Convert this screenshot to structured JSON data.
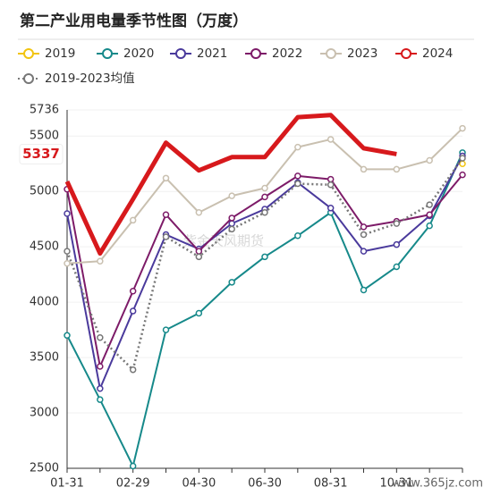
{
  "chart_data": {
    "type": "line",
    "title": "第二产业用电量季节性图（万度）",
    "categories": [
      "01-31",
      null,
      "02-29",
      null,
      "04-30",
      null,
      "06-30",
      null,
      "08-31",
      null,
      "10-31",
      null,
      null
    ],
    "series": [
      {
        "name": "2019",
        "color": "#f2c40f",
        "values": [
          null,
          null,
          null,
          null,
          null,
          null,
          null,
          null,
          null,
          null,
          null,
          null,
          5250
        ]
      },
      {
        "name": "2020",
        "color": "#16898a",
        "values": [
          3700,
          3120,
          2520,
          3750,
          3900,
          4180,
          4410,
          4600,
          4810,
          4110,
          4320,
          4690,
          5350
        ]
      },
      {
        "name": "2021",
        "color": "#4a3a9c",
        "values": [
          4800,
          3220,
          3920,
          4610,
          4480,
          4710,
          4840,
          5080,
          4850,
          4460,
          4520,
          4780,
          5320
        ]
      },
      {
        "name": "2022",
        "color": "#7d1b68",
        "values": [
          5020,
          3420,
          4100,
          4790,
          4460,
          4760,
          4950,
          5140,
          5110,
          4680,
          4730,
          4790,
          5150
        ]
      },
      {
        "name": "2023",
        "color": "#c9c0b0",
        "values": [
          4350,
          4370,
          4740,
          5120,
          4810,
          4960,
          5030,
          5400,
          5470,
          5200,
          5200,
          5280,
          5570
        ]
      },
      {
        "name": "2024",
        "color": "#d7191c",
        "values": [
          5090,
          4440,
          4930,
          5440,
          5190,
          5310,
          5310,
          5670,
          5690,
          5390,
          5337,
          null,
          null
        ]
      },
      {
        "name": "2019-2023均值",
        "color": "#777777",
        "values": [
          4460,
          3680,
          3390,
          4590,
          4410,
          4660,
          4810,
          5070,
          5060,
          4610,
          4710,
          4880,
          5300
        ]
      }
    ],
    "ylim": [
      2500,
      5736
    ],
    "yticks": [
      2500,
      3000,
      3500,
      4000,
      4500,
      5000,
      5500,
      5736
    ],
    "grid": true,
    "legend": "top",
    "watermark": "紫金天风期货",
    "source_mark": "www.365jz.com"
  }
}
